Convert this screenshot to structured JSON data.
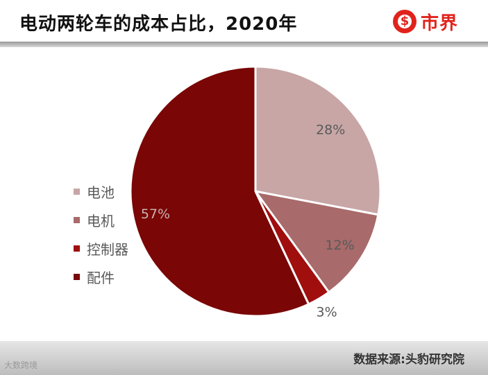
{
  "header": {
    "title": "电动两轮车的成本占比，2020年",
    "logo_text": "市界"
  },
  "footer": {
    "source": "数据来源:头豹研究院",
    "watermark": "大数跨境"
  },
  "colors": {
    "battery": "#c8a6a6",
    "motor": "#a86a6a",
    "controller": "#a00e0e",
    "parts": "#7a0606",
    "brand": "#e0231c"
  },
  "chart_data": {
    "type": "pie",
    "title": "电动两轮车的成本占比，2020年",
    "slices": [
      {
        "label": "电池",
        "value": 28,
        "display": "28%",
        "color": "#c8a6a6"
      },
      {
        "label": "电机",
        "value": 12,
        "display": "12%",
        "color": "#a86a6a"
      },
      {
        "label": "控制器",
        "value": 3,
        "display": "3%",
        "color": "#a00e0e"
      },
      {
        "label": "配件",
        "value": 57,
        "display": "57%",
        "color": "#7a0606"
      }
    ],
    "legend_position": "left"
  }
}
